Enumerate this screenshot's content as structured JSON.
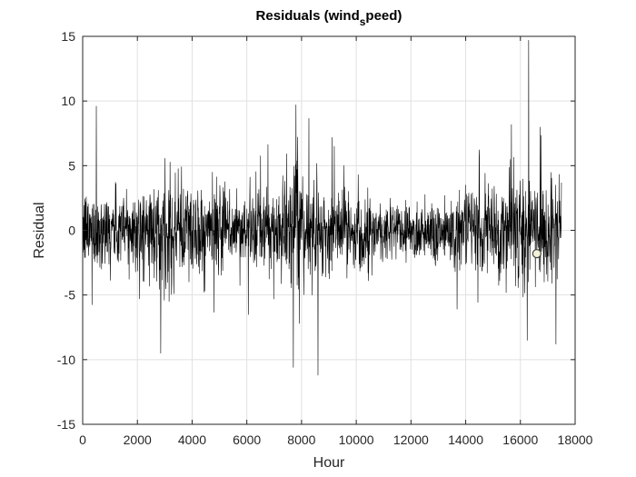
{
  "chart_data": {
    "type": "line",
    "title": {
      "prefix": "Residuals (wind",
      "subscript": "s",
      "suffix": "peed)"
    },
    "xlabel": "Hour",
    "ylabel": "Residual",
    "xlim": [
      0,
      18000
    ],
    "ylim": [
      -15,
      15
    ],
    "x_ticks": [
      0,
      2000,
      4000,
      6000,
      8000,
      10000,
      12000,
      14000,
      16000,
      18000
    ],
    "x_tick_labels": [
      "0",
      "2000",
      "4000",
      "6000",
      "8000",
      "10000",
      "12000",
      "14000",
      "16000",
      "18000"
    ],
    "y_ticks": [
      15,
      10,
      5,
      0,
      -5,
      -10,
      -15
    ],
    "y_tick_labels": [
      "15",
      "10",
      "5",
      "0",
      "-5",
      "-10",
      "-15"
    ],
    "grid": true,
    "series": [
      {
        "color": "#000000",
        "n_points": 17500,
        "x_range": [
          0,
          17500
        ],
        "typical_amplitude": 3,
        "peaks": [
          {
            "x": 500,
            "y": 9.6
          },
          {
            "x": 2850,
            "y": -9.5
          },
          {
            "x": 7700,
            "y": -10.6
          },
          {
            "x": 7800,
            "y": 9.7
          },
          {
            "x": 8600,
            "y": -11.2
          },
          {
            "x": 16300,
            "y": 14.7
          },
          {
            "x": 17300,
            "y": -8.8
          }
        ]
      }
    ],
    "marker": {
      "x": 16600,
      "y": -1.8,
      "fill": "#f2f2d8",
      "stroke": "#444444"
    }
  }
}
